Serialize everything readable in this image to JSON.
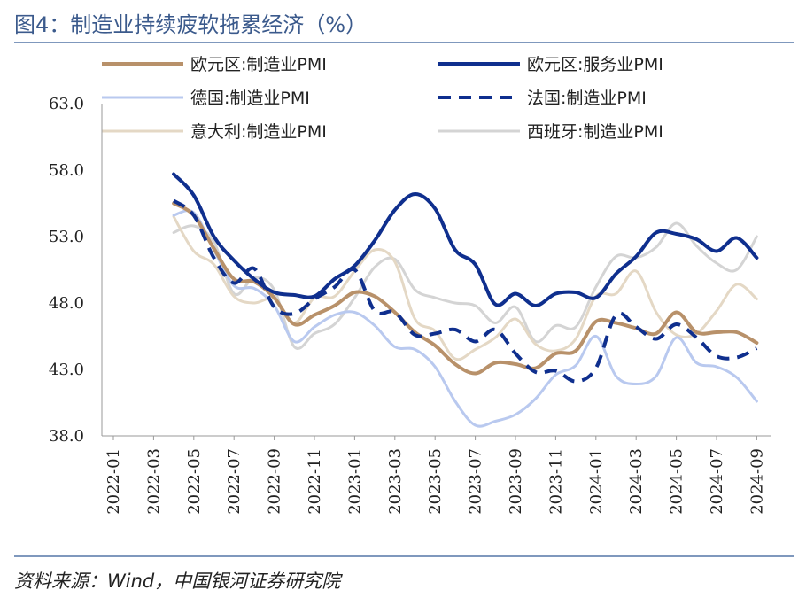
{
  "title": "图4：制造业持续疲软拖累经济（%）",
  "source": "资料来源：Wind，中国银河证券研究院",
  "chart_data": {
    "type": "line",
    "ylim": [
      38,
      63
    ],
    "y_ticks": [
      "63.0",
      "58.0",
      "53.0",
      "48.0",
      "43.0",
      "38.0"
    ],
    "x_ticks": [
      "2022-01",
      "2022-03",
      "2022-05",
      "2022-07",
      "2022-09",
      "2022-11",
      "2023-01",
      "2023-03",
      "2023-05",
      "2023-07",
      "2023-09",
      "2023-11",
      "2024-01",
      "2024-03",
      "2024-05",
      "2024-07",
      "2024-09"
    ],
    "x": [
      "2022-04",
      "2022-05",
      "2022-06",
      "2022-07",
      "2022-08",
      "2022-09",
      "2022-10",
      "2022-11",
      "2022-12",
      "2023-01",
      "2023-02",
      "2023-03",
      "2023-04",
      "2023-05",
      "2023-06",
      "2023-07",
      "2023-08",
      "2023-09",
      "2023-10",
      "2023-11",
      "2023-12",
      "2024-01",
      "2024-02",
      "2024-03",
      "2024-04",
      "2024-05",
      "2024-06",
      "2024-07",
      "2024-08",
      "2024-09"
    ],
    "series": [
      {
        "name": "欧元区:制造业PMI",
        "color": "#b8916a",
        "width": 4,
        "dash": "",
        "values": [
          55.5,
          54.6,
          52.1,
          49.8,
          49.6,
          48.4,
          46.4,
          47.1,
          47.8,
          48.8,
          48.5,
          47.3,
          45.8,
          44.8,
          43.4,
          42.7,
          43.5,
          43.4,
          43.1,
          44.2,
          44.4,
          46.6,
          46.5,
          46.1,
          45.7,
          47.3,
          45.8,
          45.8,
          45.8,
          45.0
        ]
      },
      {
        "name": "欧元区:服务业PMI",
        "color": "#0f2f8e",
        "width": 4,
        "dash": "",
        "values": [
          57.7,
          56.1,
          53.0,
          51.2,
          49.8,
          48.8,
          48.6,
          48.5,
          49.8,
          50.8,
          52.7,
          55.0,
          56.2,
          55.1,
          52.0,
          50.9,
          47.9,
          48.7,
          47.8,
          48.7,
          48.8,
          48.4,
          50.2,
          51.5,
          53.3,
          53.2,
          52.8,
          51.9,
          52.9,
          51.4
        ]
      },
      {
        "name": "德国:制造业PMI",
        "color": "#b9c9ef",
        "width": 3,
        "dash": "",
        "values": [
          54.6,
          54.8,
          52.0,
          49.3,
          49.1,
          47.8,
          45.1,
          46.2,
          47.1,
          47.3,
          46.3,
          44.7,
          44.5,
          43.2,
          40.6,
          38.8,
          39.1,
          39.6,
          40.8,
          42.6,
          43.3,
          45.5,
          42.5,
          41.9,
          42.5,
          45.4,
          43.5,
          43.2,
          42.4,
          40.6
        ]
      },
      {
        "name": "法国:制造业PMI",
        "color": "#0f2f8e",
        "width": 4,
        "dash": "14,9",
        "values": [
          55.7,
          54.6,
          51.4,
          49.5,
          50.6,
          47.7,
          47.2,
          48.3,
          49.2,
          50.5,
          47.4,
          47.3,
          45.6,
          45.7,
          46.0,
          45.1,
          46.0,
          44.2,
          42.8,
          42.9,
          42.1,
          43.1,
          47.1,
          46.2,
          45.3,
          46.4,
          45.4,
          44.0,
          43.9,
          44.6
        ]
      },
      {
        "name": "意大利:制造业PMI",
        "color": "#e4d8c5",
        "width": 3,
        "dash": "",
        "values": [
          54.5,
          51.9,
          50.9,
          48.5,
          48.0,
          48.3,
          46.5,
          48.4,
          48.5,
          50.4,
          52.0,
          51.1,
          46.8,
          45.9,
          43.8,
          44.5,
          45.4,
          46.8,
          44.9,
          44.4,
          45.3,
          48.5,
          48.7,
          50.4,
          47.3,
          45.6,
          45.7,
          47.4,
          49.4,
          48.3
        ]
      },
      {
        "name": "西班牙:制造业PMI",
        "color": "#d4d4d4",
        "width": 3,
        "dash": "",
        "values": [
          53.3,
          53.8,
          52.6,
          48.7,
          49.9,
          49.0,
          44.7,
          45.7,
          46.4,
          48.4,
          50.7,
          51.3,
          49.0,
          48.4,
          48.0,
          47.8,
          46.5,
          47.7,
          45.1,
          46.3,
          46.2,
          49.2,
          51.5,
          51.4,
          52.2,
          54.0,
          52.3,
          51.0,
          50.5,
          53.0
        ]
      }
    ]
  }
}
